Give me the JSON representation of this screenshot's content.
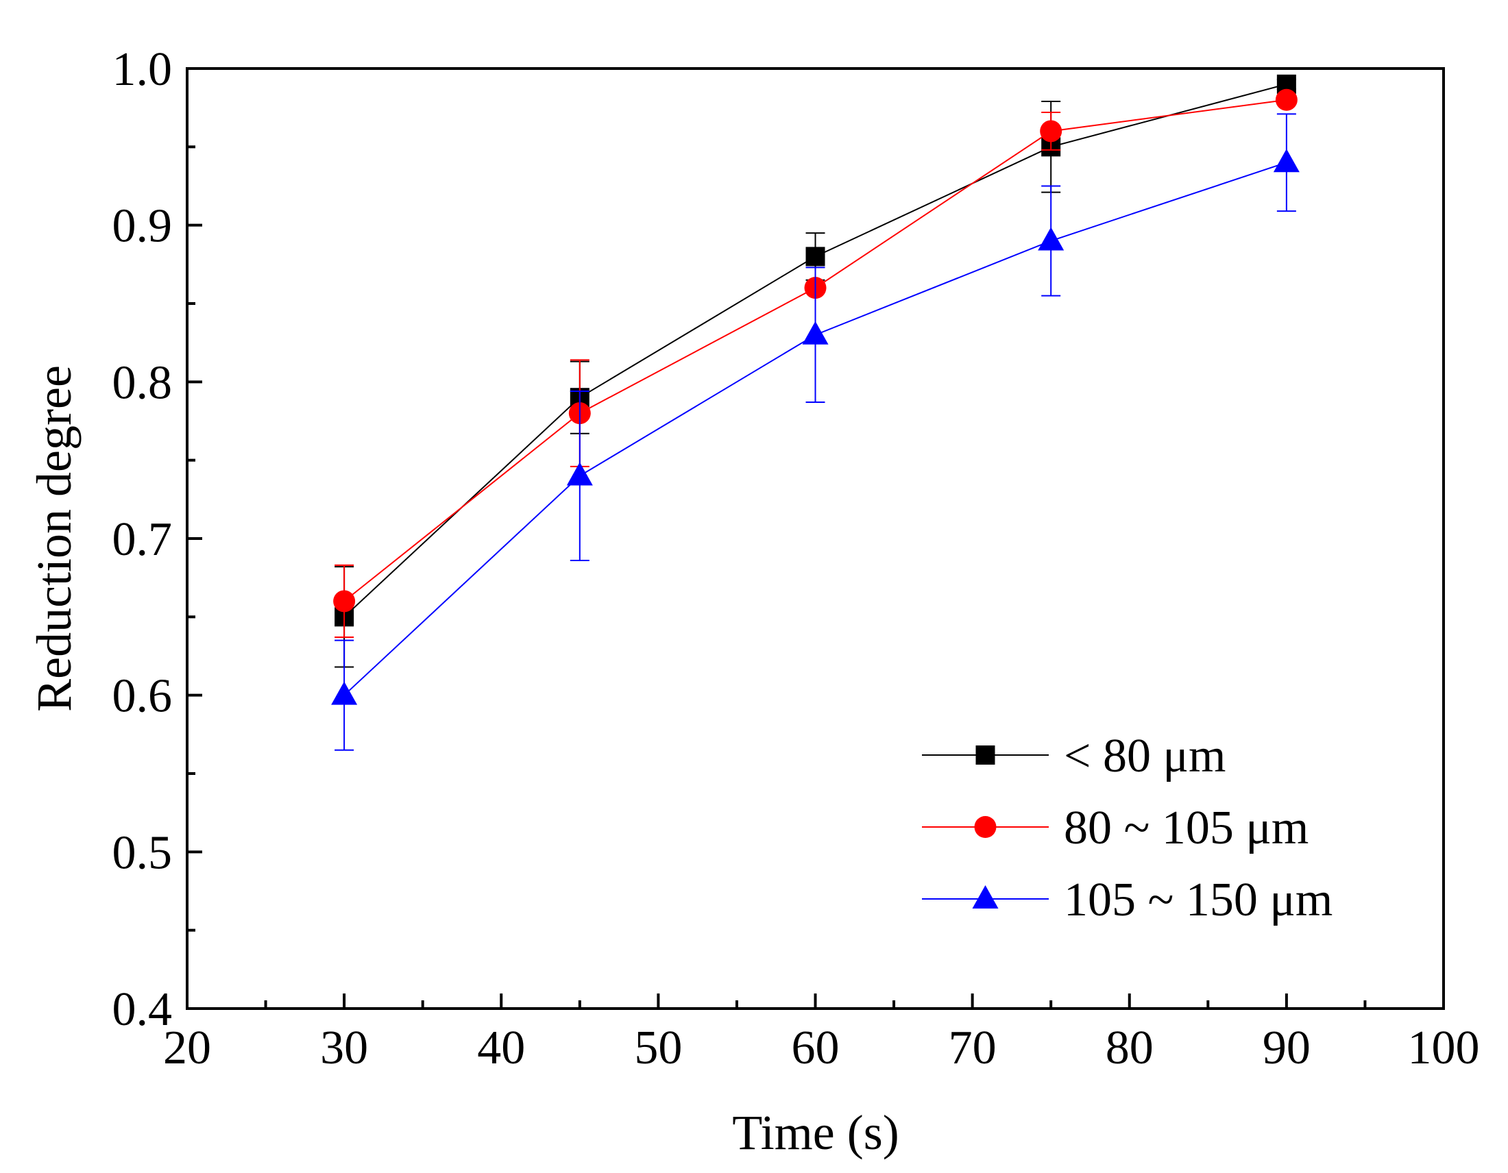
{
  "chart_data": {
    "type": "line",
    "xlabel": "Time (s)",
    "ylabel": "Reduction degree",
    "xlim": [
      20,
      100
    ],
    "ylim": [
      0.4,
      1.0
    ],
    "xticks": [
      20,
      30,
      40,
      50,
      60,
      70,
      80,
      90,
      100
    ],
    "xtick_labels": [
      "20",
      "30",
      "40",
      "50",
      "60",
      "70",
      "80",
      "90",
      "100"
    ],
    "yticks": [
      0.4,
      0.5,
      0.6,
      0.7,
      0.8,
      0.9,
      1.0
    ],
    "ytick_labels": [
      "0.4",
      "0.5",
      "0.6",
      "0.7",
      "0.8",
      "0.9",
      "1.0"
    ],
    "legend_position": "bottom-right",
    "x": [
      30,
      45,
      60,
      75,
      90
    ],
    "series": [
      {
        "name": "< 80 μm",
        "color": "#000000",
        "marker": "square",
        "values": [
          0.65,
          0.79,
          0.88,
          0.95,
          0.99
        ],
        "error": [
          0.032,
          0.023,
          0.015,
          0.029,
          0.003
        ]
      },
      {
        "name": "80 ~ 105 μm",
        "color": "#ff0000",
        "marker": "circle",
        "values": [
          0.66,
          0.78,
          0.86,
          0.96,
          0.98
        ],
        "error": [
          0.023,
          0.034,
          0.0,
          0.012,
          0.0
        ]
      },
      {
        "name": "105 ~ 150 μm",
        "color": "#0000ff",
        "marker": "triangle",
        "values": [
          0.6,
          0.74,
          0.83,
          0.89,
          0.94
        ],
        "error": [
          0.035,
          0.054,
          0.043,
          0.035,
          0.031
        ]
      }
    ]
  }
}
